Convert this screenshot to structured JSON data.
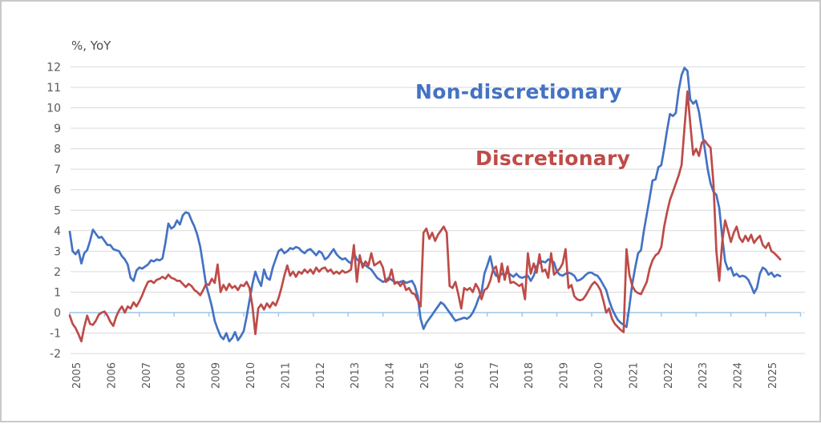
{
  "frame": {
    "background": "#FFFFFF",
    "border_color": "#C9C9C9"
  },
  "chart_data": {
    "type": "line",
    "title": "%, YoY",
    "xlabel": "",
    "ylabel": "%, YoY",
    "ylim": [
      -2,
      12
    ],
    "grid": "horizontal",
    "gridline_color": "#D9D9D9",
    "axis_line_color": "#9DC3E6",
    "tick_label_color": "#595959",
    "legend_position": "inside-plot-top",
    "y_ticks": [
      12,
      11,
      10,
      9,
      8,
      7,
      6,
      5,
      4,
      3,
      2,
      1,
      0,
      -1,
      -2
    ],
    "x_tick_years": [
      2005,
      2006,
      2007,
      2008,
      2009,
      2010,
      2011,
      2012,
      2013,
      2014,
      2015,
      2016,
      2017,
      2018,
      2019,
      2020,
      2021,
      2022,
      2023,
      2024,
      2025
    ],
    "start_month": "2005-01",
    "frequency": "monthly",
    "series": [
      {
        "name": "Non-discretionary",
        "color": "#4472C4",
        "values": [
          3.95,
          3.0,
          2.85,
          3.05,
          2.4,
          2.9,
          3.05,
          3.5,
          4.05,
          3.85,
          3.65,
          3.7,
          3.5,
          3.3,
          3.3,
          3.1,
          3.05,
          3.0,
          2.75,
          2.6,
          2.35,
          1.7,
          1.55,
          2.05,
          2.2,
          2.15,
          2.25,
          2.35,
          2.55,
          2.5,
          2.6,
          2.55,
          2.65,
          3.4,
          4.35,
          4.1,
          4.2,
          4.5,
          4.3,
          4.75,
          4.9,
          4.85,
          4.5,
          4.2,
          3.8,
          3.2,
          2.3,
          1.35,
          0.85,
          0.3,
          -0.4,
          -0.8,
          -1.15,
          -1.3,
          -1.0,
          -1.4,
          -1.25,
          -0.95,
          -1.35,
          -1.15,
          -0.9,
          -0.2,
          0.6,
          1.4,
          2.0,
          1.6,
          1.3,
          2.1,
          1.7,
          1.6,
          2.2,
          2.6,
          3.0,
          3.1,
          2.9,
          3.0,
          3.15,
          3.1,
          3.2,
          3.15,
          3.0,
          2.9,
          3.05,
          3.1,
          2.95,
          2.8,
          3.0,
          2.9,
          2.6,
          2.7,
          2.9,
          3.1,
          2.85,
          2.7,
          2.6,
          2.65,
          2.5,
          2.4,
          2.9,
          2.6,
          2.5,
          2.4,
          2.3,
          2.2,
          2.1,
          1.9,
          1.7,
          1.6,
          1.5,
          1.55,
          1.7,
          1.6,
          1.5,
          1.45,
          1.5,
          1.55,
          1.45,
          1.5,
          1.55,
          1.3,
          0.8,
          -0.3,
          -0.8,
          -0.5,
          -0.3,
          -0.1,
          0.1,
          0.3,
          0.5,
          0.4,
          0.2,
          0.0,
          -0.2,
          -0.4,
          -0.35,
          -0.3,
          -0.25,
          -0.3,
          -0.2,
          0.0,
          0.3,
          0.7,
          1.0,
          1.9,
          2.3,
          2.75,
          2.1,
          1.8,
          1.75,
          1.9,
          1.85,
          1.95,
          1.85,
          1.75,
          1.9,
          1.75,
          1.7,
          1.75,
          1.8,
          1.55,
          1.8,
          2.25,
          2.45,
          2.5,
          2.45,
          2.6,
          2.55,
          2.45,
          2.0,
          1.85,
          1.8,
          1.9,
          1.95,
          1.9,
          1.8,
          1.55,
          1.6,
          1.7,
          1.85,
          1.95,
          1.95,
          1.85,
          1.8,
          1.6,
          1.35,
          1.1,
          0.6,
          0.2,
          -0.1,
          -0.35,
          -0.5,
          -0.6,
          -0.7,
          0.3,
          1.4,
          2.2,
          2.9,
          3.05,
          4.0,
          4.8,
          5.6,
          6.45,
          6.5,
          7.1,
          7.2,
          8.0,
          8.9,
          9.7,
          9.6,
          9.75,
          10.85,
          11.6,
          11.95,
          11.8,
          10.4,
          10.2,
          10.35,
          9.8,
          8.9,
          8.0,
          7.0,
          6.3,
          5.9,
          5.75,
          5.1,
          3.7,
          2.5,
          2.1,
          2.2,
          1.8,
          1.9,
          1.75,
          1.8,
          1.75,
          1.6,
          1.3,
          0.95,
          1.2,
          1.9,
          2.2,
          2.1,
          1.85,
          1.95,
          1.75,
          1.85,
          1.78
        ]
      },
      {
        "name": "Discretionary",
        "color": "#BE4B48",
        "values": [
          -0.15,
          -0.55,
          -0.75,
          -1.05,
          -1.4,
          -0.7,
          -0.15,
          -0.55,
          -0.6,
          -0.4,
          -0.1,
          0.0,
          0.05,
          -0.15,
          -0.45,
          -0.65,
          -0.2,
          0.1,
          0.3,
          0.0,
          0.3,
          0.2,
          0.5,
          0.3,
          0.55,
          0.85,
          1.2,
          1.5,
          1.55,
          1.45,
          1.6,
          1.65,
          1.75,
          1.65,
          1.85,
          1.7,
          1.65,
          1.55,
          1.55,
          1.4,
          1.25,
          1.4,
          1.3,
          1.1,
          1.0,
          0.85,
          1.1,
          1.4,
          1.35,
          1.65,
          1.45,
          2.35,
          1.0,
          1.35,
          1.1,
          1.4,
          1.2,
          1.3,
          1.1,
          1.35,
          1.3,
          1.5,
          1.2,
          0.3,
          -1.05,
          0.2,
          0.4,
          0.15,
          0.45,
          0.25,
          0.5,
          0.35,
          0.7,
          1.2,
          1.8,
          2.3,
          1.8,
          2.0,
          1.75,
          2.0,
          1.9,
          2.1,
          1.95,
          2.1,
          1.9,
          2.2,
          2.0,
          2.15,
          2.2,
          2.0,
          2.1,
          1.9,
          2.0,
          1.9,
          2.05,
          1.95,
          2.0,
          2.1,
          3.3,
          1.5,
          2.8,
          2.2,
          2.5,
          2.3,
          2.9,
          2.3,
          2.4,
          2.5,
          2.2,
          1.5,
          1.6,
          2.1,
          1.4,
          1.5,
          1.3,
          1.5,
          1.1,
          1.2,
          0.95,
          0.9,
          0.6,
          0.3,
          3.9,
          4.1,
          3.6,
          3.9,
          3.5,
          3.8,
          4.0,
          4.2,
          3.9,
          1.3,
          1.2,
          1.5,
          0.9,
          0.2,
          1.2,
          1.1,
          1.2,
          1.0,
          1.4,
          1.15,
          0.65,
          1.1,
          1.2,
          1.55,
          2.1,
          2.25,
          1.5,
          2.4,
          1.6,
          2.25,
          1.45,
          1.5,
          1.4,
          1.3,
          1.4,
          0.65,
          2.9,
          1.9,
          2.4,
          1.95,
          2.85,
          2.0,
          2.1,
          1.7,
          2.9,
          1.85,
          2.0,
          2.15,
          2.4,
          3.1,
          1.2,
          1.35,
          0.8,
          0.65,
          0.6,
          0.65,
          0.85,
          1.1,
          1.35,
          1.5,
          1.35,
          1.1,
          0.6,
          0.0,
          0.2,
          -0.3,
          -0.55,
          -0.7,
          -0.85,
          -0.95,
          3.1,
          1.85,
          1.3,
          1.05,
          0.95,
          0.9,
          1.2,
          1.5,
          2.15,
          2.55,
          2.8,
          2.9,
          3.2,
          4.2,
          4.9,
          5.5,
          5.9,
          6.3,
          6.7,
          7.2,
          9.0,
          10.8,
          9.2,
          7.7,
          8.0,
          7.65,
          8.3,
          8.4,
          8.2,
          8.05,
          6.3,
          3.0,
          1.55,
          3.45,
          4.5,
          4.0,
          3.45,
          3.9,
          4.2,
          3.65,
          3.45,
          3.75,
          3.5,
          3.8,
          3.4,
          3.6,
          3.75,
          3.3,
          3.15,
          3.4,
          3.0,
          2.9,
          2.75,
          2.6
        ]
      }
    ]
  }
}
